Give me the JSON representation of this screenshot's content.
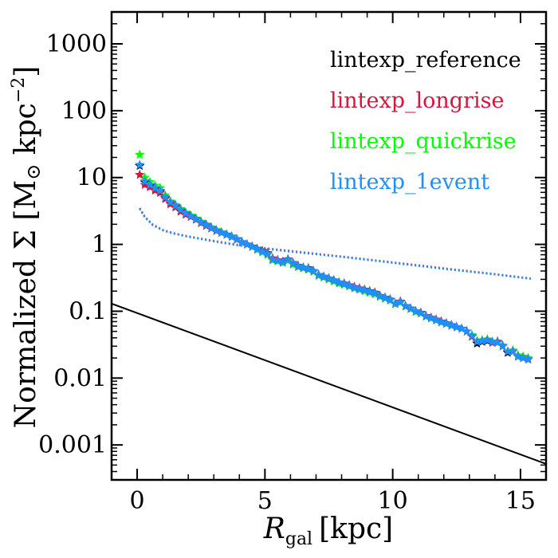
{
  "chart_data": {
    "type": "scatter",
    "title": "",
    "xlabel": {
      "symbol": "R",
      "subscript": "gal",
      "unit": "[kpc]"
    },
    "ylabel": {
      "prefix": "Normalized Σ [M",
      "sun": "⊙",
      "mid": " kpc",
      "sup": "−2",
      "suffix": "]"
    },
    "x_scale": "linear",
    "y_scale": "log",
    "xlim": [
      -1,
      16
    ],
    "ylim": [
      0.0003,
      3000
    ],
    "x_ticks": [
      0,
      5,
      10,
      15
    ],
    "x_tick_labels": [
      "0",
      "5",
      "10",
      "15"
    ],
    "y_ticks": [
      0.001,
      0.01,
      0.1,
      1,
      10,
      100,
      1000
    ],
    "y_tick_labels": [
      "0.001",
      "0.01",
      "0.1",
      "1",
      "10",
      "100",
      "1000"
    ],
    "grid": false,
    "legend_position": "top-right",
    "series": [
      {
        "name": "lintexp_reference",
        "color": "#000000",
        "marker": "star",
        "x": [
          0.1,
          0.3,
          0.5,
          0.7,
          0.9,
          1.1,
          1.3,
          1.5,
          1.7,
          1.9,
          2.1,
          2.3,
          2.5,
          2.7,
          2.9,
          3.1,
          3.3,
          3.5,
          3.7,
          3.9,
          4.1,
          4.3,
          4.5,
          4.7,
          4.9,
          5.1,
          5.3,
          5.5,
          5.7,
          5.9,
          6.1,
          6.3,
          6.5,
          6.7,
          6.9,
          7.1,
          7.3,
          7.5,
          7.7,
          7.9,
          8.1,
          8.3,
          8.5,
          8.7,
          8.9,
          9.1,
          9.3,
          9.5,
          9.7,
          9.9,
          10.1,
          10.3,
          10.5,
          10.7,
          10.9,
          11.1,
          11.3,
          11.5,
          11.7,
          11.9,
          12.1,
          12.3,
          12.5,
          12.7,
          12.9,
          13.1,
          13.3,
          13.5,
          13.7,
          13.9,
          14.1,
          14.3,
          14.5,
          14.7,
          14.9,
          15.1,
          15.3
        ],
        "y": [
          15,
          8.5,
          7.6,
          6.8,
          6.2,
          5.0,
          4.2,
          3.7,
          3.2,
          2.9,
          2.6,
          2.4,
          2.1,
          1.95,
          1.75,
          1.6,
          1.5,
          1.4,
          1.3,
          1.2,
          1.08,
          1.0,
          0.93,
          0.86,
          0.8,
          0.74,
          0.6,
          0.58,
          0.55,
          0.6,
          0.52,
          0.47,
          0.45,
          0.44,
          0.4,
          0.35,
          0.33,
          0.31,
          0.29,
          0.27,
          0.26,
          0.245,
          0.23,
          0.22,
          0.21,
          0.2,
          0.19,
          0.17,
          0.16,
          0.15,
          0.13,
          0.14,
          0.12,
          0.11,
          0.1,
          0.095,
          0.085,
          0.08,
          0.075,
          0.07,
          0.066,
          0.062,
          0.058,
          0.055,
          0.05,
          0.042,
          0.033,
          0.035,
          0.036,
          0.034,
          0.035,
          0.03,
          0.024,
          0.025,
          0.021,
          0.02,
          0.019
        ]
      },
      {
        "name": "lintexp_longrise",
        "color": "#dc143c",
        "marker": "star",
        "x": [
          0.1,
          0.3,
          0.5,
          0.7,
          0.9,
          1.1,
          1.3,
          1.5,
          1.7,
          1.9,
          2.1,
          2.3,
          2.5,
          2.7,
          2.9,
          3.1,
          3.3,
          3.5,
          3.7,
          3.9,
          4.1,
          4.3,
          4.5,
          4.7,
          4.9,
          5.1,
          5.3,
          5.5,
          5.7,
          5.9,
          6.1,
          6.3,
          6.5,
          6.7,
          6.9,
          7.1,
          7.3,
          7.5,
          7.7,
          7.9,
          8.1,
          8.3,
          8.5,
          8.7,
          8.9,
          9.1,
          9.3,
          9.5,
          9.7,
          9.9,
          10.1,
          10.3,
          10.5,
          10.7,
          10.9,
          11.1,
          11.3,
          11.5,
          11.7,
          11.9,
          12.1,
          12.3,
          12.5,
          12.7,
          12.9,
          13.1,
          13.3,
          13.5,
          13.7,
          13.9,
          14.1,
          14.3,
          14.5,
          14.7,
          14.9,
          15.1,
          15.3
        ],
        "y": [
          11,
          7.8,
          7.2,
          6.4,
          5.9,
          4.8,
          4.0,
          3.6,
          3.1,
          2.8,
          2.6,
          2.35,
          2.1,
          1.9,
          1.75,
          1.6,
          1.5,
          1.4,
          1.3,
          1.18,
          1.07,
          1.0,
          0.92,
          0.85,
          0.79,
          0.73,
          0.62,
          0.58,
          0.55,
          0.6,
          0.53,
          0.48,
          0.45,
          0.43,
          0.4,
          0.35,
          0.33,
          0.31,
          0.29,
          0.27,
          0.26,
          0.245,
          0.23,
          0.22,
          0.21,
          0.2,
          0.19,
          0.17,
          0.16,
          0.15,
          0.13,
          0.14,
          0.12,
          0.11,
          0.1,
          0.095,
          0.085,
          0.08,
          0.075,
          0.07,
          0.066,
          0.062,
          0.058,
          0.055,
          0.05,
          0.042,
          0.035,
          0.036,
          0.037,
          0.034,
          0.035,
          0.03,
          0.025,
          0.025,
          0.021,
          0.02,
          0.019
        ]
      },
      {
        "name": "lintexp_quickrise",
        "color": "#00ff00",
        "marker": "star",
        "x": [
          0.1,
          0.3,
          0.5,
          0.7,
          0.9,
          1.1,
          1.3,
          1.5,
          1.7,
          1.9,
          2.1,
          2.3,
          2.5,
          2.7,
          2.9,
          3.1,
          3.3,
          3.5,
          3.7,
          3.9,
          4.1,
          4.3,
          4.5,
          4.7,
          4.9,
          5.1,
          5.3,
          5.5,
          5.7,
          5.9,
          6.1,
          6.3,
          6.5,
          6.7,
          6.9,
          7.1,
          7.3,
          7.5,
          7.7,
          7.9,
          8.1,
          8.3,
          8.5,
          8.7,
          8.9,
          9.1,
          9.3,
          9.5,
          9.7,
          9.9,
          10.1,
          10.3,
          10.5,
          10.7,
          10.9,
          11.1,
          11.3,
          11.5,
          11.7,
          11.9,
          12.1,
          12.3,
          12.5,
          12.7,
          12.9,
          13.1,
          13.3,
          13.5,
          13.7,
          13.9,
          14.1,
          14.3,
          14.5,
          14.7,
          14.9,
          15.1,
          15.3
        ],
        "y": [
          22,
          10,
          8.6,
          7.6,
          7.0,
          5.4,
          4.4,
          3.9,
          3.4,
          3.0,
          2.7,
          2.45,
          2.2,
          2.0,
          1.8,
          1.65,
          1.52,
          1.42,
          1.32,
          1.2,
          1.09,
          1.0,
          0.92,
          0.83,
          0.76,
          0.7,
          0.58,
          0.56,
          0.53,
          0.57,
          0.5,
          0.46,
          0.44,
          0.42,
          0.39,
          0.34,
          0.32,
          0.3,
          0.28,
          0.26,
          0.25,
          0.235,
          0.22,
          0.21,
          0.2,
          0.19,
          0.18,
          0.165,
          0.155,
          0.145,
          0.128,
          0.135,
          0.118,
          0.108,
          0.098,
          0.093,
          0.083,
          0.078,
          0.073,
          0.068,
          0.065,
          0.061,
          0.058,
          0.055,
          0.05,
          0.044,
          0.036,
          0.037,
          0.038,
          0.035,
          0.034,
          0.031,
          0.025,
          0.026,
          0.022,
          0.021,
          0.02
        ]
      },
      {
        "name": "lintexp_1event",
        "color": "#1e90ff",
        "marker": "star",
        "x": [
          0.1,
          0.3,
          0.5,
          0.7,
          0.9,
          1.1,
          1.3,
          1.5,
          1.7,
          1.9,
          2.1,
          2.3,
          2.5,
          2.7,
          2.9,
          3.1,
          3.3,
          3.5,
          3.7,
          3.9,
          4.1,
          4.3,
          4.5,
          4.7,
          4.9,
          5.1,
          5.3,
          5.5,
          5.7,
          5.9,
          6.1,
          6.3,
          6.5,
          6.7,
          6.9,
          7.1,
          7.3,
          7.5,
          7.7,
          7.9,
          8.1,
          8.3,
          8.5,
          8.7,
          8.9,
          9.1,
          9.3,
          9.5,
          9.7,
          9.9,
          10.1,
          10.3,
          10.5,
          10.7,
          10.9,
          11.1,
          11.3,
          11.5,
          11.7,
          11.9,
          12.1,
          12.3,
          12.5,
          12.7,
          12.9,
          13.1,
          13.3,
          13.5,
          13.7,
          13.9,
          14.1,
          14.3,
          14.5,
          14.7,
          14.9,
          15.1,
          15.3
        ],
        "y": [
          15.5,
          8.8,
          7.8,
          7.0,
          6.4,
          5.1,
          4.3,
          3.8,
          3.3,
          2.95,
          2.65,
          2.4,
          2.15,
          1.95,
          1.78,
          1.62,
          1.5,
          1.4,
          1.3,
          1.19,
          1.08,
          1.0,
          0.92,
          0.85,
          0.78,
          0.72,
          0.6,
          0.57,
          0.54,
          0.59,
          0.52,
          0.47,
          0.45,
          0.43,
          0.4,
          0.35,
          0.33,
          0.31,
          0.29,
          0.27,
          0.255,
          0.24,
          0.225,
          0.215,
          0.205,
          0.195,
          0.185,
          0.168,
          0.158,
          0.148,
          0.13,
          0.138,
          0.12,
          0.11,
          0.1,
          0.094,
          0.084,
          0.079,
          0.074,
          0.069,
          0.065,
          0.061,
          0.058,
          0.055,
          0.05,
          0.043,
          0.035,
          0.036,
          0.037,
          0.035,
          0.034,
          0.03,
          0.025,
          0.025,
          0.021,
          0.02,
          0.019
        ]
      }
    ],
    "dotted_lines": [
      {
        "color": "#c0506e",
        "x": [
          0.1,
          0.3,
          0.6,
          1.0,
          1.5,
          2.0,
          2.5,
          3.0,
          3.5,
          4.0,
          5.0,
          6.0,
          8.0,
          10.0,
          12.0,
          14.0,
          15.4
        ],
        "y": [
          3.5,
          2.6,
          2.0,
          1.65,
          1.45,
          1.32,
          1.22,
          1.13,
          1.05,
          0.98,
          0.88,
          0.8,
          0.66,
          0.54,
          0.44,
          0.36,
          0.31
        ]
      },
      {
        "color": "#1e90ff",
        "x": [
          0.1,
          0.3,
          0.6,
          1.0,
          1.5,
          2.0,
          2.5,
          3.0,
          3.5,
          4.0,
          5.0,
          6.0,
          8.0,
          10.0,
          12.0,
          14.0,
          15.4
        ],
        "y": [
          3.4,
          2.55,
          1.95,
          1.62,
          1.43,
          1.3,
          1.2,
          1.11,
          1.03,
          0.96,
          0.86,
          0.78,
          0.65,
          0.53,
          0.43,
          0.355,
          0.305
        ]
      }
    ],
    "solid_lines": [
      {
        "color": "#000000",
        "x": [
          -1,
          16
        ],
        "y": [
          0.13,
          0.00052
        ]
      }
    ]
  }
}
